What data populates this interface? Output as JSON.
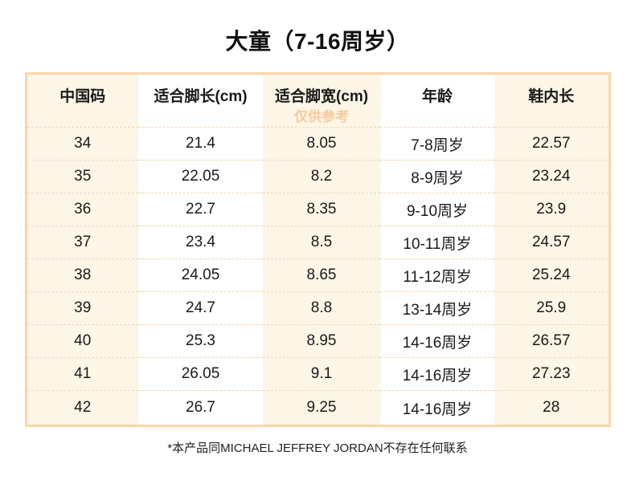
{
  "chart_data": {
    "type": "table",
    "title": "大童（7-16周岁）",
    "columns": [
      "中国码",
      "适合脚长(cm)",
      "适合脚宽(cm)",
      "年龄",
      "鞋内长"
    ],
    "watermark": "仅供参考",
    "watermark_under_column": "适合脚宽(cm)",
    "rows": [
      [
        "34",
        "21.4",
        "8.05",
        "7-8周岁",
        "22.57"
      ],
      [
        "35",
        "22.05",
        "8.2",
        "8-9周岁",
        "23.24"
      ],
      [
        "36",
        "22.7",
        "8.35",
        "9-10周岁",
        "23.9"
      ],
      [
        "37",
        "23.4",
        "8.5",
        "10-11周岁",
        "24.57"
      ],
      [
        "38",
        "24.05",
        "8.65",
        "11-12周岁",
        "25.24"
      ],
      [
        "39",
        "24.7",
        "8.8",
        "13-14周岁",
        "25.9"
      ],
      [
        "40",
        "25.3",
        "8.95",
        "14-16周岁",
        "26.57"
      ],
      [
        "41",
        "26.05",
        "9.1",
        "14-16周岁",
        "27.23"
      ],
      [
        "42",
        "26.7",
        "9.25",
        "14-16周岁",
        "28"
      ]
    ]
  },
  "footer": {
    "note": "*本产品同MICHAEL JEFFREY JORDAN不存在任何联系"
  },
  "colors": {
    "table_border": "#f9d6ab",
    "stripe_cell_bg": "#fdf5e6",
    "white_cell_bg": "#ffffff",
    "row_divider_dashed": "#efd5b3",
    "watermark_text": "#f5cb9e",
    "title_text": "#111111",
    "body_text": "#1a1a1a"
  }
}
